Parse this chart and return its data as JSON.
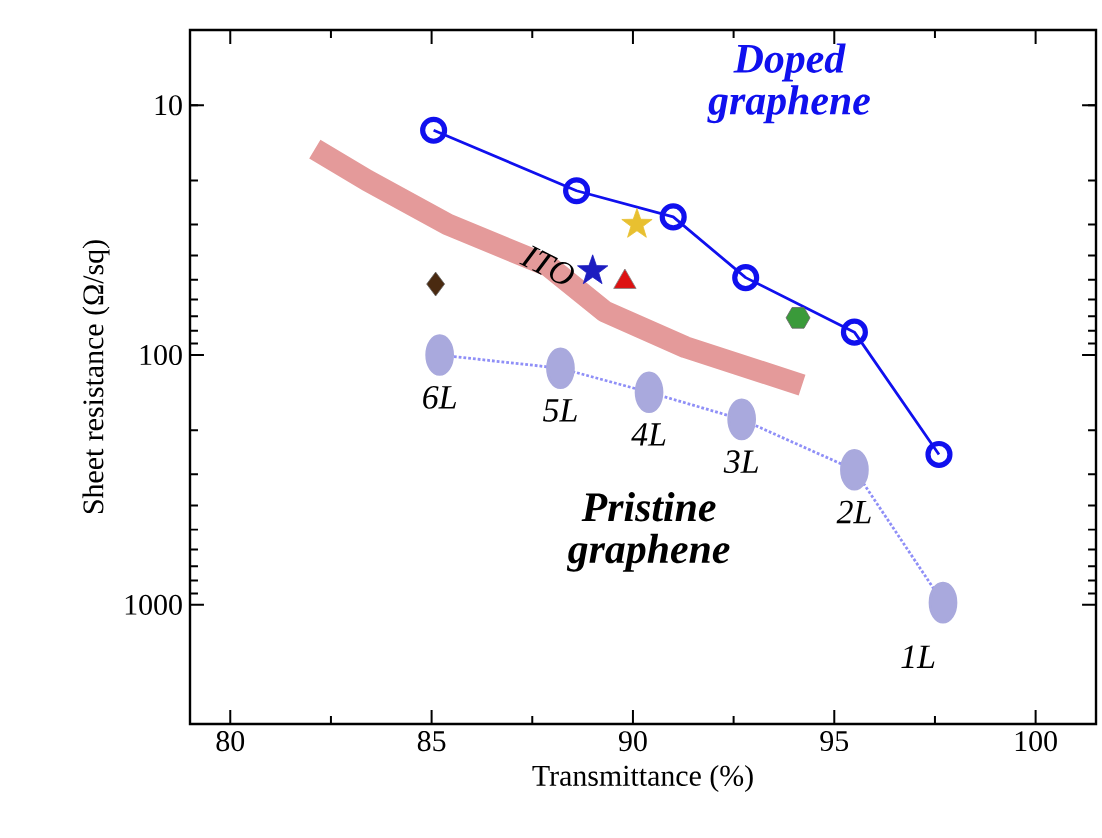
{
  "chart_data": {
    "type": "line",
    "xlabel": "Transmittance (%)",
    "ylabel": "Sheet resistance (Ω/sq)",
    "log": "y",
    "xlim": [
      79,
      101.5
    ],
    "xticks": [
      80,
      85,
      90,
      95,
      100
    ],
    "ylim": [
      3000,
      5
    ],
    "yticks": [
      10,
      100,
      1000
    ],
    "series": [
      {
        "name": "ITO",
        "type": "line",
        "color": "#e49a9a",
        "x": [
          82.1,
          83.4,
          85.4,
          87.9,
          89.3,
          91.3,
          94.2
        ],
        "values": [
          15,
          20,
          30,
          44,
          67,
          93,
          132
        ],
        "line_style": "solid",
        "marker": "none"
      },
      {
        "name": "Doped graphene",
        "marker": "circle",
        "line_style": "solid",
        "color": "#1010ee",
        "x": [
          85.05,
          88.6,
          91.0,
          92.8,
          95.5,
          97.6
        ],
        "values": [
          12.6,
          22,
          28,
          49,
          81,
          250
        ]
      },
      {
        "name": "Pristine graphene",
        "marker": "circle",
        "line_style": "dotted",
        "color": "#a9a9dd",
        "x": [
          85.2,
          88.2,
          90.4,
          92.7,
          95.5,
          97.7
        ],
        "values": [
          100,
          113,
          141,
          181,
          288,
          980
        ]
      },
      {
        "type": "scatter",
        "marker": "diamond",
        "color": "#4a2a10",
        "x": [
          85.1
        ],
        "values": [
          52
        ]
      },
      {
        "type": "scatter",
        "marker": "star",
        "color": "#1c1cc0",
        "x": [
          89.0
        ],
        "values": [
          46
        ]
      },
      {
        "type": "scatter",
        "marker": "triangle",
        "color": "#dd1111",
        "x": [
          89.8
        ],
        "values": [
          51
        ]
      },
      {
        "type": "scatter",
        "marker": "star",
        "color": "#e8c030",
        "x": [
          90.1
        ],
        "values": [
          30
        ]
      },
      {
        "type": "scatter",
        "color": "#3a9a3a",
        "x": [
          94.1
        ],
        "values": [
          71
        ]
      }
    ],
    "annotations": [
      {
        "text": "*6L*",
        "x": 85.2,
        "y": 100
      },
      {
        "text": "*5L*",
        "x": 88.2,
        "y": 113
      },
      {
        "text": "*4L*",
        "x": 90.4,
        "y": 141
      },
      {
        "text": "*3L*",
        "x": 92.7,
        "y": 181
      },
      {
        "text": "*2L*",
        "x": 95.5,
        "y": 288
      },
      {
        "text": "*1L*",
        "x": 97.7,
        "y": 980
      }
    ]
  }
}
